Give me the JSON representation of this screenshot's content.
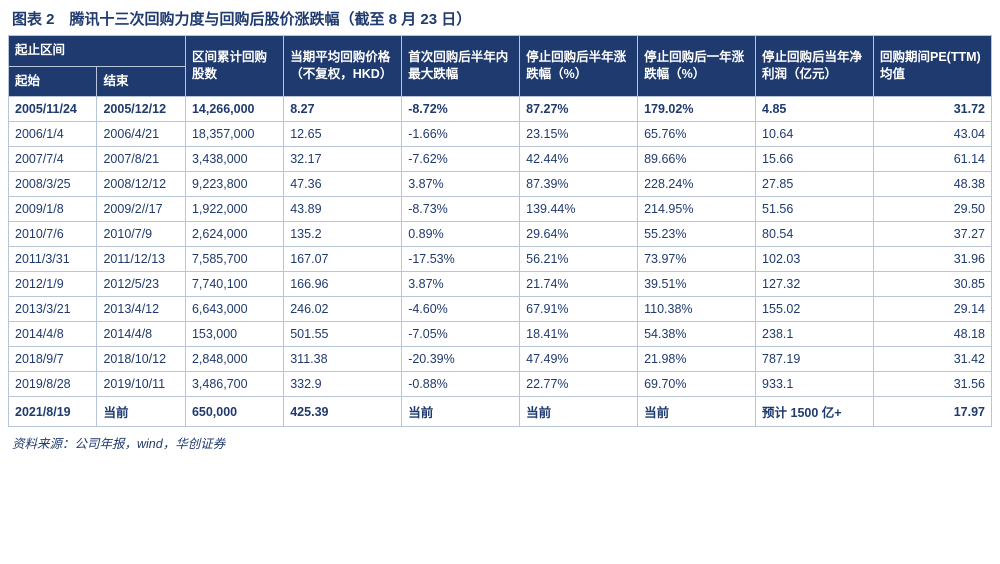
{
  "title": "图表 2　腾讯十三次回购力度与回购后股价涨跌幅（截至 8 月 23 日）",
  "source": "资料来源：公司年报，wind，华创证券",
  "colors": {
    "header_bg": "#1f3a6e",
    "header_text": "#ffffff",
    "cell_text": "#1f3a6e",
    "border": "#b8c4d8",
    "background": "#ffffff"
  },
  "columns": {
    "group_period": "起止区间",
    "start": "起始",
    "end": "结束",
    "cum_shares": "区间累计回购股数",
    "avg_price": "当期平均回购价格（不复权，HKD）",
    "max_drop": "首次回购后半年内最大跌幅",
    "half_year_chg": "停止回购后半年涨跌幅（%）",
    "one_year_chg": "停止回购后一年涨跌幅（%）",
    "net_profit": "停止回购后当年净利润（亿元）",
    "pe_ttm": "回购期间PE(TTM)均值"
  },
  "rows": [
    {
      "start": "2005/11/24",
      "end": "2005/12/12",
      "shares": "14,266,000",
      "price": "8.27",
      "maxdrop": "-8.72%",
      "half": "87.27%",
      "year": "179.02%",
      "profit": "4.85",
      "pe": "31.72"
    },
    {
      "start": "2006/1/4",
      "end": "2006/4/21",
      "shares": "18,357,000",
      "price": "12.65",
      "maxdrop": "-1.66%",
      "half": "23.15%",
      "year": "65.76%",
      "profit": "10.64",
      "pe": "43.04"
    },
    {
      "start": "2007/7/4",
      "end": "2007/8/21",
      "shares": "3,438,000",
      "price": "32.17",
      "maxdrop": "-7.62%",
      "half": "42.44%",
      "year": "89.66%",
      "profit": "15.66",
      "pe": "61.14"
    },
    {
      "start": "2008/3/25",
      "end": "2008/12/12",
      "shares": "9,223,800",
      "price": "47.36",
      "maxdrop": "3.87%",
      "half": "87.39%",
      "year": "228.24%",
      "profit": "27.85",
      "pe": "48.38"
    },
    {
      "start": "2009/1/8",
      "end": "2009/2//17",
      "shares": "1,922,000",
      "price": "43.89",
      "maxdrop": "-8.73%",
      "half": "139.44%",
      "year": "214.95%",
      "profit": "51.56",
      "pe": "29.50"
    },
    {
      "start": "2010/7/6",
      "end": "2010/7/9",
      "shares": "2,624,000",
      "price": "135.2",
      "maxdrop": "0.89%",
      "half": "29.64%",
      "year": "55.23%",
      "profit": "80.54",
      "pe": "37.27"
    },
    {
      "start": "2011/3/31",
      "end": "2011/12/13",
      "shares": "7,585,700",
      "price": "167.07",
      "maxdrop": "-17.53%",
      "half": "56.21%",
      "year": "73.97%",
      "profit": "102.03",
      "pe": "31.96"
    },
    {
      "start": "2012/1/9",
      "end": "2012/5/23",
      "shares": "7,740,100",
      "price": "166.96",
      "maxdrop": "3.87%",
      "half": "21.74%",
      "year": "39.51%",
      "profit": "127.32",
      "pe": "30.85"
    },
    {
      "start": "2013/3/21",
      "end": "2013/4/12",
      "shares": "6,643,000",
      "price": "246.02",
      "maxdrop": "-4.60%",
      "half": "67.91%",
      "year": "110.38%",
      "profit": "155.02",
      "pe": "29.14"
    },
    {
      "start": "2014/4/8",
      "end": "2014/4/8",
      "shares": "153,000",
      "price": "501.55",
      "maxdrop": "-7.05%",
      "half": "18.41%",
      "year": "54.38%",
      "profit": "238.1",
      "pe": "48.18"
    },
    {
      "start": "2018/9/7",
      "end": "2018/10/12",
      "shares": "2,848,000",
      "price": "311.38",
      "maxdrop": "-20.39%",
      "half": "47.49%",
      "year": "21.98%",
      "profit": "787.19",
      "pe": "31.42"
    },
    {
      "start": "2019/8/28",
      "end": "2019/10/11",
      "shares": "3,486,700",
      "price": "332.9",
      "maxdrop": "-0.88%",
      "half": "22.77%",
      "year": "69.70%",
      "profit": "933.1",
      "pe": "31.56"
    },
    {
      "start": "2021/8/19",
      "end": "当前",
      "shares": "650,000",
      "price": "425.39",
      "maxdrop": "当前",
      "half": "当前",
      "year": "当前",
      "profit": "预计 1500 亿+",
      "pe": "17.97"
    }
  ]
}
